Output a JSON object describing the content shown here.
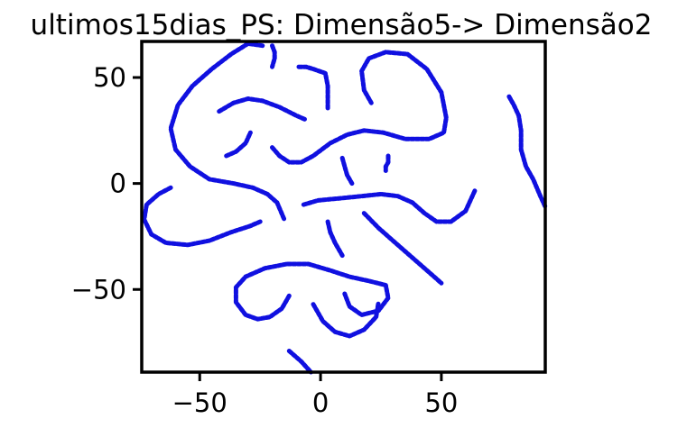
{
  "chart_data": {
    "type": "scatter",
    "title": "ultimos15dias_PS: Dimensão5-> Dimensão2",
    "xlabel": "",
    "ylabel": "",
    "xlim": [
      -74,
      93
    ],
    "ylim": [
      -89,
      67
    ],
    "xticks": [
      -50,
      0,
      50
    ],
    "yticks": [
      50,
      0,
      -50
    ],
    "xtick_labels": [
      "−50",
      "0",
      "50"
    ],
    "ytick_labels": [
      "50",
      "0",
      "−50"
    ],
    "grid": false,
    "marker_color": "#1010e0",
    "series": [
      {
        "points": [
          [
            -24,
            65
          ],
          [
            -30,
            66
          ],
          [
            -37,
            61
          ],
          [
            -45,
            54
          ],
          [
            -53,
            46
          ],
          [
            -59,
            37
          ],
          [
            -62,
            26
          ],
          [
            -60,
            16
          ],
          [
            -54,
            8
          ],
          [
            -46,
            2
          ],
          [
            -36,
            0
          ],
          [
            -28,
            -2
          ],
          [
            -22,
            -5
          ],
          [
            -18,
            -9
          ],
          [
            -15,
            -17
          ]
        ]
      },
      {
        "points": [
          [
            -20,
            65
          ],
          [
            -19,
            62
          ],
          [
            -19,
            59
          ],
          [
            -20,
            55
          ]
        ]
      },
      {
        "points": [
          [
            -42,
            34
          ],
          [
            -36,
            38
          ],
          [
            -30,
            40
          ],
          [
            -24,
            39
          ],
          [
            -17,
            36
          ],
          [
            -10,
            32
          ],
          [
            -6,
            30
          ]
        ]
      },
      {
        "points": [
          [
            -39,
            13
          ],
          [
            -35,
            15
          ],
          [
            -31,
            19
          ],
          [
            -29,
            24
          ]
        ]
      },
      {
        "points": [
          [
            -20,
            17
          ],
          [
            -17,
            13
          ],
          [
            -13,
            10
          ],
          [
            -8,
            10
          ],
          [
            -3,
            13
          ],
          [
            4,
            19
          ],
          [
            11,
            23
          ],
          [
            18,
            25
          ],
          [
            26,
            24
          ],
          [
            35,
            21
          ],
          [
            45,
            21
          ],
          [
            51,
            24
          ],
          [
            52,
            31
          ],
          [
            50,
            43
          ],
          [
            44,
            54
          ],
          [
            36,
            61
          ],
          [
            27,
            62
          ],
          [
            20,
            59
          ],
          [
            17,
            53
          ],
          [
            18,
            44
          ],
          [
            21,
            38
          ]
        ]
      },
      {
        "points": [
          [
            -9,
            55
          ],
          [
            -6,
            55
          ],
          [
            -3,
            54
          ],
          [
            2,
            52
          ],
          [
            3,
            46
          ],
          [
            3,
            40
          ],
          [
            3,
            35
          ]
        ]
      },
      {
        "points": [
          [
            28,
            13
          ],
          [
            28,
            10
          ],
          [
            27,
            8
          ],
          [
            27,
            6
          ]
        ]
      },
      {
        "points": [
          [
            9,
            12
          ],
          [
            10,
            8
          ],
          [
            11,
            4
          ],
          [
            13,
            0
          ]
        ]
      },
      {
        "points": [
          [
            -62,
            -2
          ],
          [
            -67,
            -5
          ],
          [
            -72,
            -10
          ],
          [
            -73,
            -17
          ],
          [
            -70,
            -24
          ],
          [
            -64,
            -28
          ],
          [
            -55,
            -29
          ],
          [
            -46,
            -27
          ],
          [
            -37,
            -23
          ],
          [
            -29,
            -20
          ],
          [
            -25,
            -18
          ]
        ]
      },
      {
        "points": [
          [
            -7,
            -10
          ],
          [
            -1,
            -8
          ],
          [
            8,
            -7
          ],
          [
            17,
            -6
          ],
          [
            25,
            -5
          ],
          [
            32,
            -6
          ],
          [
            38,
            -9
          ],
          [
            43,
            -14
          ],
          [
            48,
            -18
          ],
          [
            54,
            -18
          ],
          [
            60,
            -13
          ],
          [
            64,
            -3
          ]
        ]
      },
      {
        "points": [
          [
            18,
            -14
          ],
          [
            24,
            -21
          ],
          [
            31,
            -28
          ],
          [
            38,
            -35
          ],
          [
            45,
            -42
          ],
          [
            50,
            -47
          ]
        ]
      },
      {
        "points": [
          [
            3,
            -18
          ],
          [
            4,
            -23
          ],
          [
            6,
            -28
          ],
          [
            8,
            -32
          ],
          [
            9,
            -34
          ]
        ]
      },
      {
        "points": [
          [
            -13,
            -53
          ],
          [
            -16,
            -59
          ],
          [
            -21,
            -63
          ],
          [
            -26,
            -64
          ],
          [
            -31,
            -62
          ],
          [
            -35,
            -56
          ],
          [
            -35,
            -49
          ],
          [
            -31,
            -44
          ],
          [
            -23,
            -40
          ],
          [
            -14,
            -38
          ],
          [
            -5,
            -38
          ],
          [
            4,
            -41
          ],
          [
            12,
            -44
          ],
          [
            20,
            -46
          ],
          [
            27,
            -48
          ],
          [
            28,
            -54
          ],
          [
            24,
            -60
          ],
          [
            17,
            -62
          ],
          [
            12,
            -58
          ],
          [
            10,
            -52
          ]
        ]
      },
      {
        "points": [
          [
            -3,
            -57
          ],
          [
            1,
            -65
          ],
          [
            6,
            -70
          ],
          [
            12,
            -72
          ],
          [
            18,
            -69
          ],
          [
            23,
            -63
          ],
          [
            24,
            -56
          ]
        ]
      },
      {
        "points": [
          [
            -13,
            -79
          ],
          [
            -8,
            -84
          ],
          [
            -4,
            -89
          ]
        ]
      },
      {
        "points": [
          [
            78,
            41
          ],
          [
            80,
            37
          ],
          [
            82,
            32
          ],
          [
            83,
            25
          ],
          [
            83,
            16
          ],
          [
            85,
            8
          ],
          [
            88,
            2
          ],
          [
            91,
            -6
          ],
          [
            93,
            -11
          ]
        ]
      }
    ]
  }
}
